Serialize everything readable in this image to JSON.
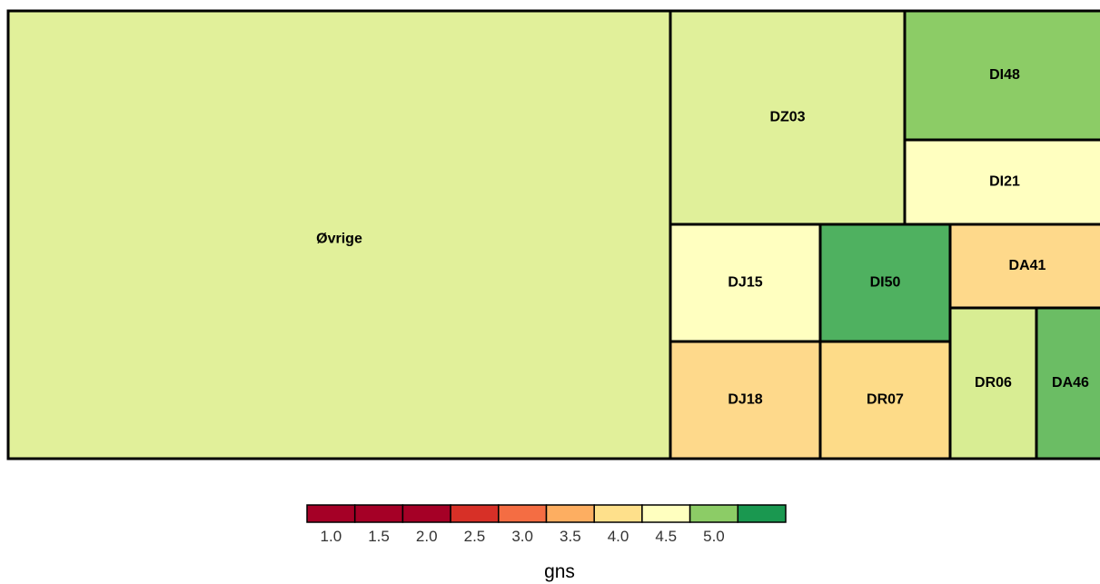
{
  "chart_data": {
    "type": "treemap",
    "tiles": [
      {
        "label": "Øvrige",
        "value": 3.85,
        "color": "#e1f09a"
      },
      {
        "label": "DZ03",
        "value": 3.9,
        "color": "#e0f09a"
      },
      {
        "label": "DI48",
        "value": 4.5,
        "color": "#8ccc66"
      },
      {
        "label": "DI21",
        "value": 4.1,
        "color": "#ffffc0"
      },
      {
        "label": "DJ15",
        "value": 4.1,
        "color": "#ffffc0"
      },
      {
        "label": "DI50",
        "value": 4.85,
        "color": "#4fb160"
      },
      {
        "label": "DA41",
        "value": 3.6,
        "color": "#fed98b"
      },
      {
        "label": "DJ18",
        "value": 3.6,
        "color": "#fed98b"
      },
      {
        "label": "DR07",
        "value": 3.55,
        "color": "#fddb88"
      },
      {
        "label": "DR06",
        "value": 4.0,
        "color": "#d8ed93"
      },
      {
        "label": "DA46",
        "value": 4.7,
        "color": "#6bbd64"
      }
    ],
    "legend": {
      "title": "gns",
      "ticks": [
        "1.0",
        "1.5",
        "2.0",
        "2.5",
        "3.0",
        "3.5",
        "4.0",
        "4.5",
        "5.0"
      ],
      "colors": [
        "#a50026",
        "#a50026",
        "#a50026",
        "#d73027",
        "#f46d43",
        "#fdae61",
        "#fee08b",
        "#ffffbf",
        "#8ccc66",
        "#1a9850"
      ]
    }
  }
}
